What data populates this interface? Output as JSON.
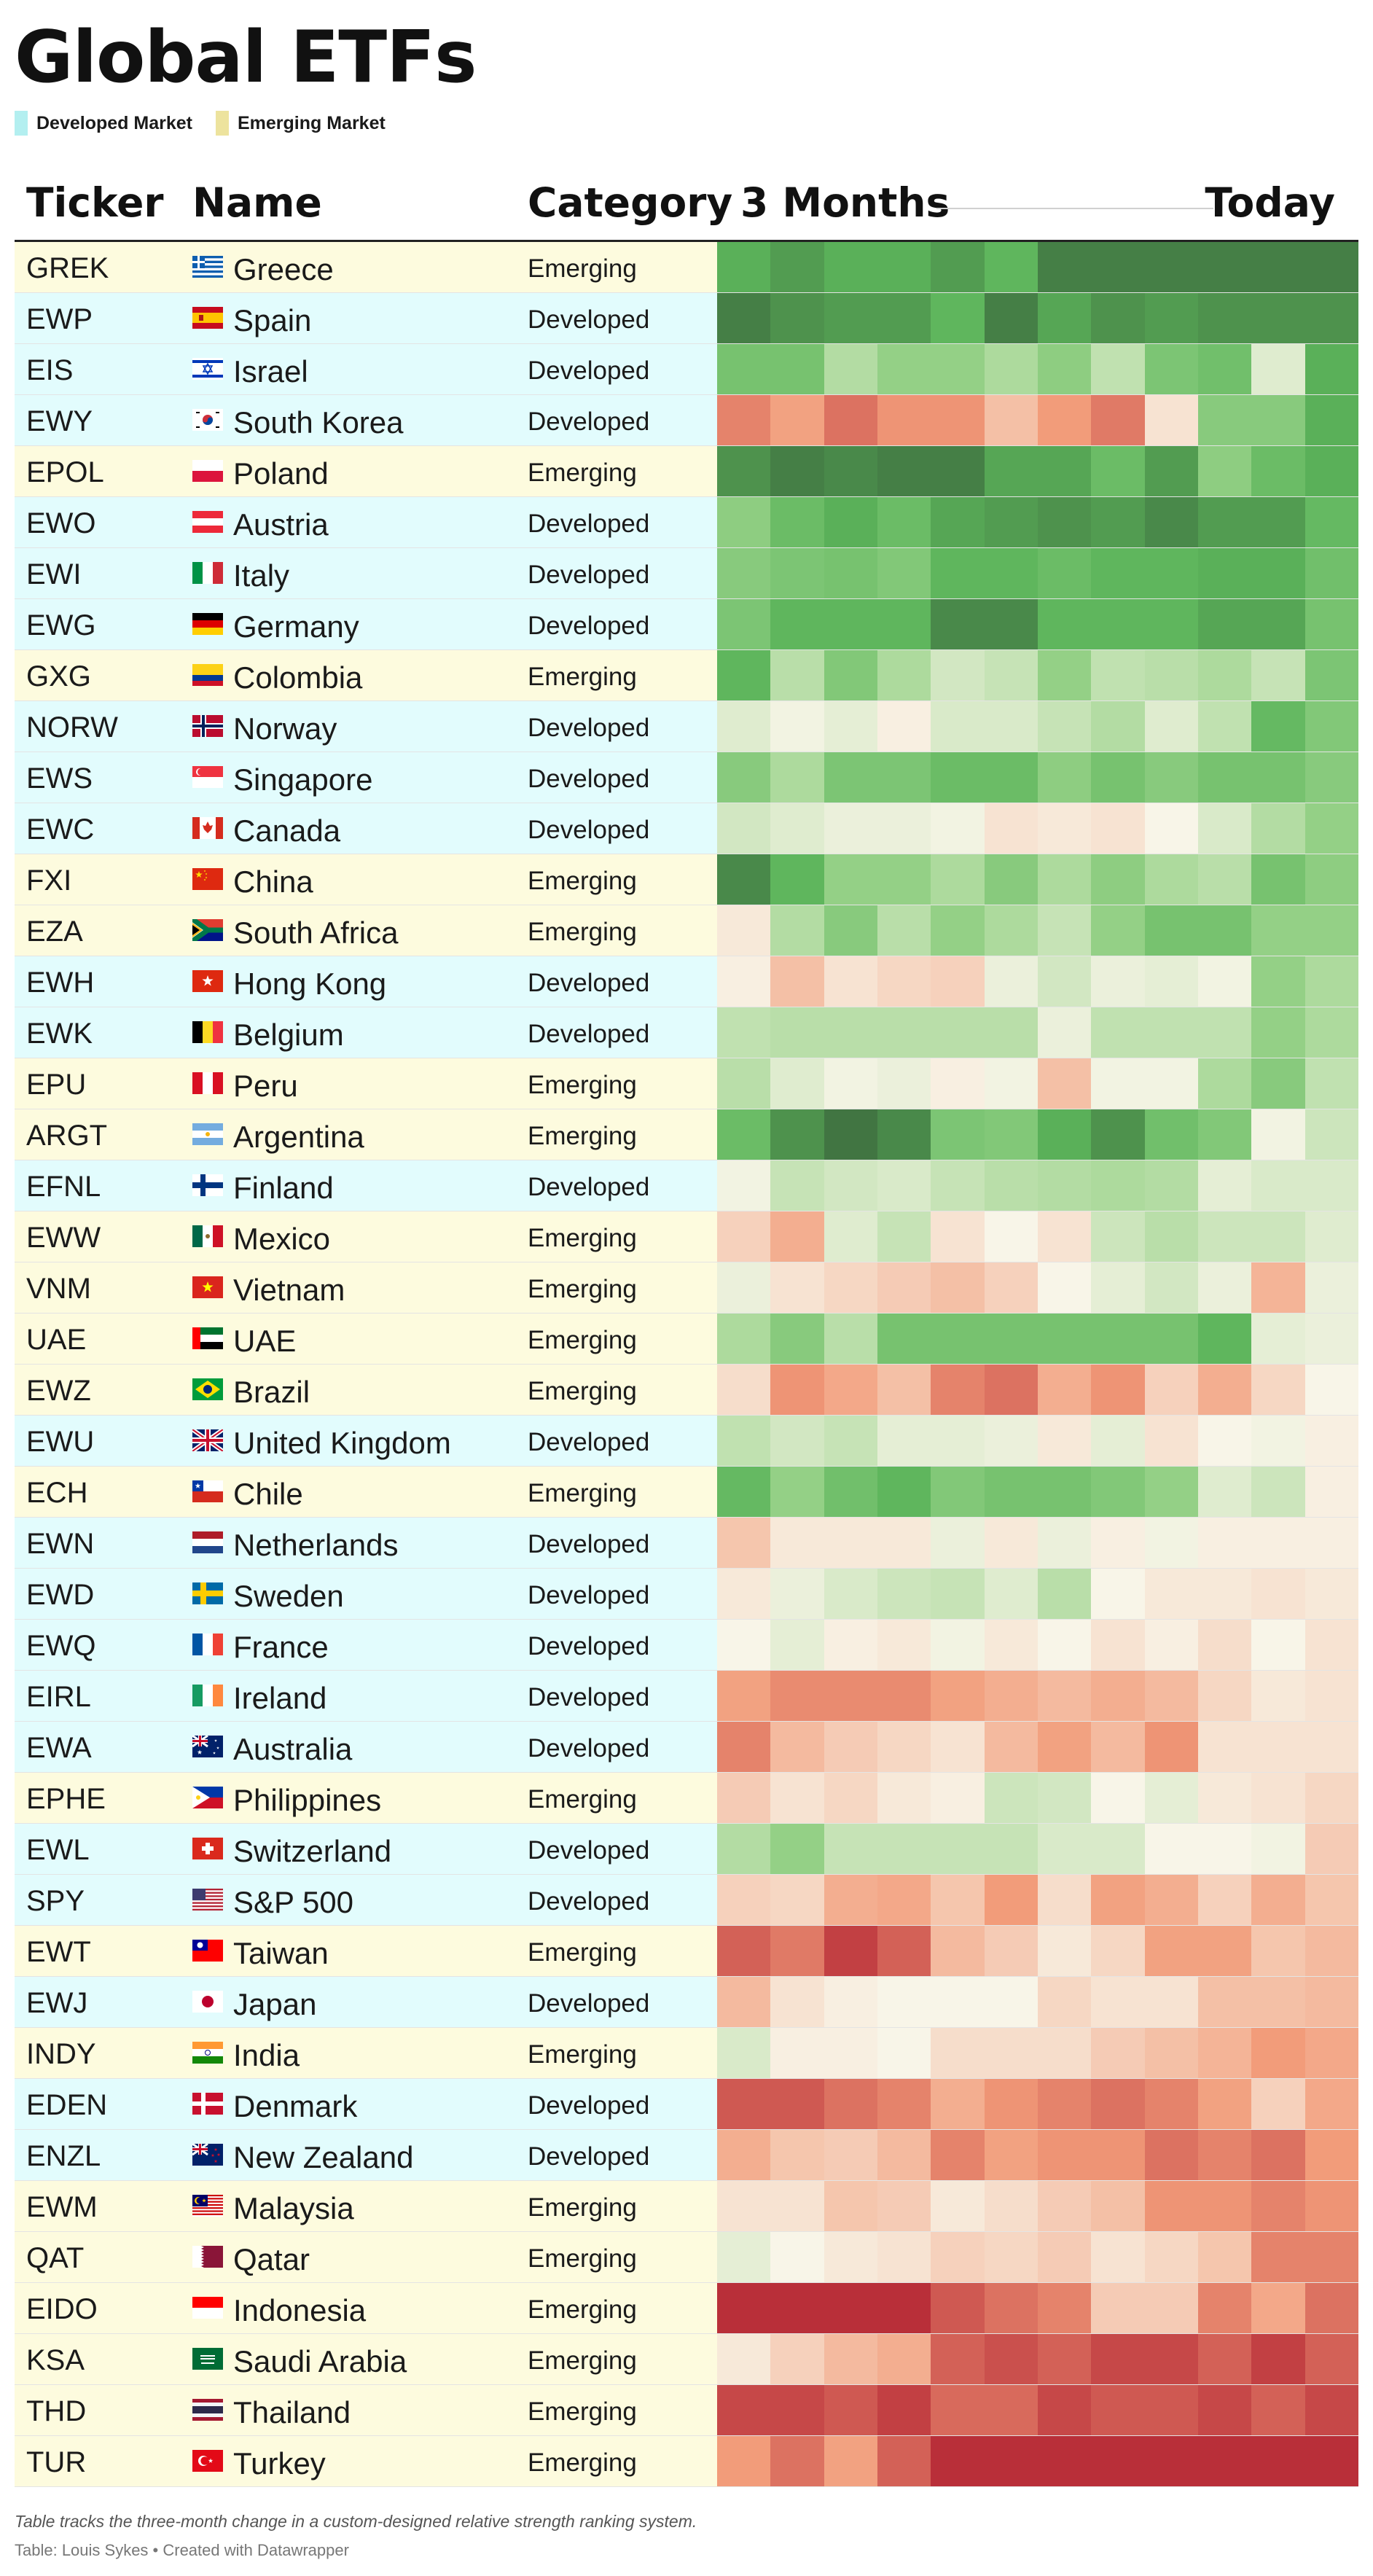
{
  "title": "Global ETFs",
  "legend": [
    {
      "label": "Developed Market",
      "color": "#b3eff0"
    },
    {
      "label": "Emerging Market",
      "color": "#ede39e"
    }
  ],
  "colors": {
    "developed_bg": "#e2fcfd",
    "emerging_bg": "#fdfbde"
  },
  "columns": {
    "ticker": "Ticker",
    "name": "Name",
    "category": "Category",
    "start": "3 Months",
    "end": "Today"
  },
  "footnote": "Table tracks the three-month change in a custom-designed relative strength ranking system.",
  "credit": "Table: Louis Sykes • Created with Datawrapper",
  "chart_data": {
    "type": "heatmap",
    "columns": [
      "3 Months",
      "",
      "",
      "",
      "",
      "",
      "",
      "",
      "",
      "",
      "",
      "Today"
    ],
    "color_scale": {
      "low": "#b01e2f",
      "mid": "#f8f5e8",
      "high": "#3d6b3e",
      "range": [
        -3,
        3
      ]
    },
    "rows": [
      {
        "ticker": "GREK",
        "name": "Greece",
        "category": "Emerging",
        "flag": "gr",
        "values": [
          2.3,
          2.5,
          2.3,
          2.3,
          2.5,
          2.2,
          2.8,
          2.8,
          2.8,
          2.8,
          2.8,
          2.8
        ]
      },
      {
        "ticker": "EWP",
        "name": "Spain",
        "category": "Developed",
        "flag": "es",
        "values": [
          2.8,
          2.6,
          2.5,
          2.5,
          2.2,
          2.8,
          2.4,
          2.6,
          2.5,
          2.6,
          2.6,
          2.6
        ]
      },
      {
        "ticker": "EIS",
        "name": "Israel",
        "category": "Developed",
        "flag": "il",
        "values": [
          1.8,
          1.8,
          1.1,
          1.3,
          1.3,
          1.2,
          1.4,
          0.9,
          1.7,
          1.9,
          0.4,
          2.3
        ]
      },
      {
        "ticker": "EWY",
        "name": "South Korea",
        "category": "Developed",
        "flag": "kr",
        "values": [
          -1.8,
          -1.4,
          -2.0,
          -1.6,
          -1.6,
          -0.9,
          -1.5,
          -1.9,
          -0.3,
          1.5,
          1.5,
          2.3
        ]
      },
      {
        "ticker": "EPOL",
        "name": "Poland",
        "category": "Emerging",
        "flag": "pl",
        "values": [
          2.6,
          2.8,
          2.7,
          2.8,
          2.8,
          2.4,
          2.4,
          2.0,
          2.5,
          1.4,
          2.0,
          2.3
        ]
      },
      {
        "ticker": "EWO",
        "name": "Austria",
        "category": "Developed",
        "flag": "at",
        "values": [
          1.4,
          2.0,
          2.3,
          2.0,
          2.4,
          2.5,
          2.6,
          2.5,
          2.7,
          2.5,
          2.5,
          2.1
        ]
      },
      {
        "ticker": "EWI",
        "name": "Italy",
        "category": "Developed",
        "flag": "it",
        "values": [
          1.5,
          1.7,
          1.8,
          1.6,
          2.2,
          2.2,
          2.0,
          2.2,
          2.2,
          2.3,
          2.3,
          1.9
        ]
      },
      {
        "ticker": "EWG",
        "name": "Germany",
        "category": "Developed",
        "flag": "de",
        "values": [
          1.7,
          2.2,
          2.2,
          2.2,
          2.7,
          2.7,
          2.2,
          2.2,
          2.2,
          2.4,
          2.4,
          1.8
        ]
      },
      {
        "ticker": "GXG",
        "name": "Colombia",
        "category": "Emerging",
        "flag": "co",
        "values": [
          2.2,
          1.0,
          1.6,
          1.2,
          0.6,
          0.8,
          1.3,
          0.9,
          1.0,
          1.2,
          0.8,
          1.7
        ]
      },
      {
        "ticker": "NORW",
        "name": "Norway",
        "category": "Developed",
        "flag": "no",
        "values": [
          0.4,
          0.1,
          0.3,
          -0.1,
          0.5,
          0.5,
          0.8,
          1.1,
          0.4,
          0.9,
          2.1,
          1.6
        ]
      },
      {
        "ticker": "EWS",
        "name": "Singapore",
        "category": "Developed",
        "flag": "sg",
        "values": [
          1.5,
          1.2,
          1.7,
          1.7,
          2.0,
          2.0,
          1.4,
          1.8,
          1.5,
          1.8,
          1.8,
          1.5
        ]
      },
      {
        "ticker": "EWC",
        "name": "Canada",
        "category": "Developed",
        "flag": "ca",
        "values": [
          0.6,
          0.4,
          0.2,
          0.2,
          0.1,
          -0.3,
          -0.2,
          -0.3,
          0.0,
          0.5,
          1.1,
          1.3
        ]
      },
      {
        "ticker": "FXI",
        "name": "China",
        "category": "Emerging",
        "flag": "cn",
        "values": [
          2.7,
          2.2,
          1.3,
          1.3,
          1.2,
          1.5,
          1.2,
          1.4,
          1.2,
          1.0,
          1.8,
          1.4
        ]
      },
      {
        "ticker": "EZA",
        "name": "South Africa",
        "category": "Emerging",
        "flag": "za",
        "values": [
          -0.2,
          1.1,
          1.5,
          1.0,
          1.3,
          1.2,
          0.8,
          1.3,
          1.8,
          1.8,
          1.3,
          1.3
        ]
      },
      {
        "ticker": "EWH",
        "name": "Hong Kong",
        "category": "Developed",
        "flag": "hk",
        "values": [
          -0.1,
          -0.9,
          -0.3,
          -0.5,
          -0.6,
          0.2,
          0.6,
          0.2,
          0.3,
          0.1,
          1.3,
          1.2
        ]
      },
      {
        "ticker": "EWK",
        "name": "Belgium",
        "category": "Developed",
        "flag": "be",
        "values": [
          0.9,
          1.0,
          1.0,
          1.0,
          1.0,
          1.0,
          0.2,
          0.9,
          0.9,
          0.9,
          1.3,
          1.2
        ]
      },
      {
        "ticker": "EPU",
        "name": "Peru",
        "category": "Emerging",
        "flag": "pe",
        "values": [
          1.0,
          0.4,
          0.1,
          0.2,
          -0.1,
          0.1,
          -0.9,
          0.1,
          0.1,
          1.2,
          1.5,
          0.9
        ]
      },
      {
        "ticker": "ARGT",
        "name": "Argentina",
        "category": "Emerging",
        "flag": "ar",
        "values": [
          2.0,
          2.6,
          2.9,
          2.7,
          1.7,
          1.6,
          2.3,
          2.6,
          1.9,
          1.6,
          0.1,
          0.7
        ]
      },
      {
        "ticker": "EFNL",
        "name": "Finland",
        "category": "Developed",
        "flag": "fi",
        "values": [
          0.1,
          0.8,
          0.6,
          0.5,
          0.8,
          1.0,
          1.1,
          1.2,
          1.1,
          0.3,
          0.5,
          0.5
        ]
      },
      {
        "ticker": "EWW",
        "name": "Mexico",
        "category": "Emerging",
        "flag": "mx",
        "values": [
          -0.6,
          -1.2,
          0.4,
          0.8,
          -0.3,
          0.0,
          -0.3,
          0.7,
          1.0,
          0.7,
          0.7,
          0.4
        ]
      },
      {
        "ticker": "VNM",
        "name": "Vietnam",
        "category": "Emerging",
        "flag": "vn",
        "values": [
          0.2,
          -0.3,
          -0.5,
          -0.7,
          -0.9,
          -0.6,
          0.0,
          0.3,
          0.6,
          0.2,
          -1.1,
          0.2
        ]
      },
      {
        "ticker": "UAE",
        "name": "UAE",
        "category": "Emerging",
        "flag": "ae",
        "values": [
          1.2,
          1.5,
          1.0,
          1.8,
          1.8,
          1.8,
          1.8,
          1.8,
          1.8,
          2.2,
          0.3,
          0.2
        ]
      },
      {
        "ticker": "EWZ",
        "name": "Brazil",
        "category": "Emerging",
        "flag": "br",
        "values": [
          -0.4,
          -1.6,
          -1.3,
          -0.9,
          -1.8,
          -2.0,
          -1.2,
          -1.6,
          -0.6,
          -1.2,
          -0.5,
          0.0
        ]
      },
      {
        "ticker": "EWU",
        "name": "United Kingdom",
        "category": "Developed",
        "flag": "gb",
        "values": [
          0.9,
          0.6,
          0.8,
          0.3,
          0.3,
          0.2,
          -0.2,
          0.3,
          -0.3,
          0.0,
          0.1,
          -0.1
        ]
      },
      {
        "ticker": "ECH",
        "name": "Chile",
        "category": "Emerging",
        "flag": "cl",
        "values": [
          2.1,
          1.3,
          1.9,
          2.2,
          1.6,
          1.8,
          1.8,
          1.6,
          1.3,
          0.4,
          0.7,
          -0.1
        ]
      },
      {
        "ticker": "EWN",
        "name": "Netherlands",
        "category": "Developed",
        "flag": "nl",
        "values": [
          -0.8,
          -0.2,
          -0.2,
          -0.2,
          0.2,
          -0.2,
          0.2,
          -0.1,
          0.1,
          -0.1,
          -0.1,
          -0.1
        ]
      },
      {
        "ticker": "EWD",
        "name": "Sweden",
        "category": "Developed",
        "flag": "se",
        "values": [
          -0.2,
          0.2,
          0.5,
          0.7,
          0.8,
          0.4,
          1.0,
          0.0,
          -0.2,
          -0.2,
          -0.3,
          -0.2
        ]
      },
      {
        "ticker": "EWQ",
        "name": "France",
        "category": "Developed",
        "flag": "fr",
        "values": [
          0.0,
          0.3,
          -0.1,
          -0.2,
          0.1,
          -0.2,
          0.0,
          -0.3,
          -0.1,
          -0.4,
          0.0,
          -0.3
        ]
      },
      {
        "ticker": "EIRL",
        "name": "Ireland",
        "category": "Developed",
        "flag": "ie",
        "values": [
          -1.4,
          -1.7,
          -1.7,
          -1.7,
          -1.4,
          -1.2,
          -1.0,
          -1.2,
          -1.0,
          -0.5,
          -0.2,
          -0.3
        ]
      },
      {
        "ticker": "EWA",
        "name": "Australia",
        "category": "Developed",
        "flag": "au",
        "values": [
          -1.8,
          -1.0,
          -0.7,
          -0.5,
          -0.3,
          -1.0,
          -1.4,
          -1.0,
          -1.6,
          -0.3,
          -0.3,
          -0.3
        ]
      },
      {
        "ticker": "EPHE",
        "name": "Philippines",
        "category": "Emerging",
        "flag": "ph",
        "values": [
          -0.7,
          -0.3,
          -0.5,
          -0.2,
          -0.1,
          0.7,
          0.6,
          0.0,
          0.3,
          -0.2,
          -0.3,
          -0.5
        ]
      },
      {
        "ticker": "EWL",
        "name": "Switzerland",
        "category": "Developed",
        "flag": "ch",
        "values": [
          1.1,
          1.3,
          0.8,
          0.8,
          0.8,
          0.8,
          0.5,
          0.5,
          0.0,
          0.0,
          0.1,
          -0.7
        ]
      },
      {
        "ticker": "SPY",
        "name": "S&P 500",
        "category": "Developed",
        "flag": "us",
        "values": [
          -0.6,
          -0.5,
          -1.2,
          -1.3,
          -0.8,
          -1.5,
          -0.4,
          -1.4,
          -1.2,
          -0.6,
          -1.2,
          -0.8
        ]
      },
      {
        "ticker": "EWT",
        "name": "Taiwan",
        "category": "Emerging",
        "flag": "tw",
        "values": [
          -2.2,
          -1.9,
          -2.6,
          -2.2,
          -1.0,
          -0.7,
          -0.2,
          -0.5,
          -1.4,
          -1.4,
          -0.8,
          -1.0
        ]
      },
      {
        "ticker": "EWJ",
        "name": "Japan",
        "category": "Developed",
        "flag": "jp",
        "values": [
          -1.0,
          -0.3,
          -0.1,
          0.0,
          0.0,
          0.0,
          -0.5,
          -0.3,
          -0.3,
          -0.9,
          -0.9,
          -1.0
        ]
      },
      {
        "ticker": "INDY",
        "name": "India",
        "category": "Emerging",
        "flag": "in",
        "values": [
          0.5,
          -0.1,
          -0.1,
          0.0,
          -0.4,
          -0.4,
          -0.4,
          -0.7,
          -0.9,
          -1.1,
          -1.5,
          -1.3
        ]
      },
      {
        "ticker": "EDEN",
        "name": "Denmark",
        "category": "Developed",
        "flag": "dk",
        "values": [
          -2.3,
          -2.3,
          -2.0,
          -1.8,
          -1.2,
          -1.6,
          -1.8,
          -2.0,
          -1.8,
          -1.4,
          -0.6,
          -1.3
        ]
      },
      {
        "ticker": "ENZL",
        "name": "New Zealand",
        "category": "Developed",
        "flag": "nz",
        "values": [
          -1.2,
          -0.8,
          -0.7,
          -1.0,
          -1.8,
          -1.4,
          -1.6,
          -1.6,
          -2.0,
          -1.8,
          -2.0,
          -1.5
        ]
      },
      {
        "ticker": "EWM",
        "name": "Malaysia",
        "category": "Emerging",
        "flag": "my",
        "values": [
          -0.3,
          -0.3,
          -0.8,
          -0.7,
          -0.2,
          -0.4,
          -0.7,
          -0.9,
          -1.6,
          -1.6,
          -1.8,
          -1.6
        ]
      },
      {
        "ticker": "QAT",
        "name": "Qatar",
        "category": "Emerging",
        "flag": "qa",
        "values": [
          0.3,
          0.0,
          -0.2,
          -0.3,
          -0.6,
          -0.5,
          -0.7,
          -0.3,
          -0.5,
          -0.8,
          -1.8,
          -1.8
        ]
      },
      {
        "ticker": "EIDO",
        "name": "Indonesia",
        "category": "Emerging",
        "flag": "id",
        "values": [
          -2.8,
          -2.8,
          -2.8,
          -2.8,
          -2.3,
          -2.0,
          -1.8,
          -0.7,
          -0.7,
          -1.8,
          -1.3,
          -2.0
        ]
      },
      {
        "ticker": "KSA",
        "name": "Saudi Arabia",
        "category": "Emerging",
        "flag": "sa",
        "values": [
          -0.2,
          -0.6,
          -1.0,
          -1.2,
          -2.2,
          -2.4,
          -2.2,
          -2.5,
          -2.5,
          -2.2,
          -2.6,
          -2.2
        ]
      },
      {
        "ticker": "THD",
        "name": "Thailand",
        "category": "Emerging",
        "flag": "th",
        "values": [
          -2.5,
          -2.5,
          -2.3,
          -2.6,
          -2.1,
          -2.1,
          -2.5,
          -2.3,
          -2.3,
          -2.5,
          -2.2,
          -2.5
        ]
      },
      {
        "ticker": "TUR",
        "name": "Turkey",
        "category": "Emerging",
        "flag": "tr",
        "values": [
          -1.5,
          -2.0,
          -1.4,
          -2.2,
          -2.8,
          -2.8,
          -2.8,
          -2.8,
          -2.8,
          -2.8,
          -2.8,
          -2.8
        ]
      }
    ]
  }
}
